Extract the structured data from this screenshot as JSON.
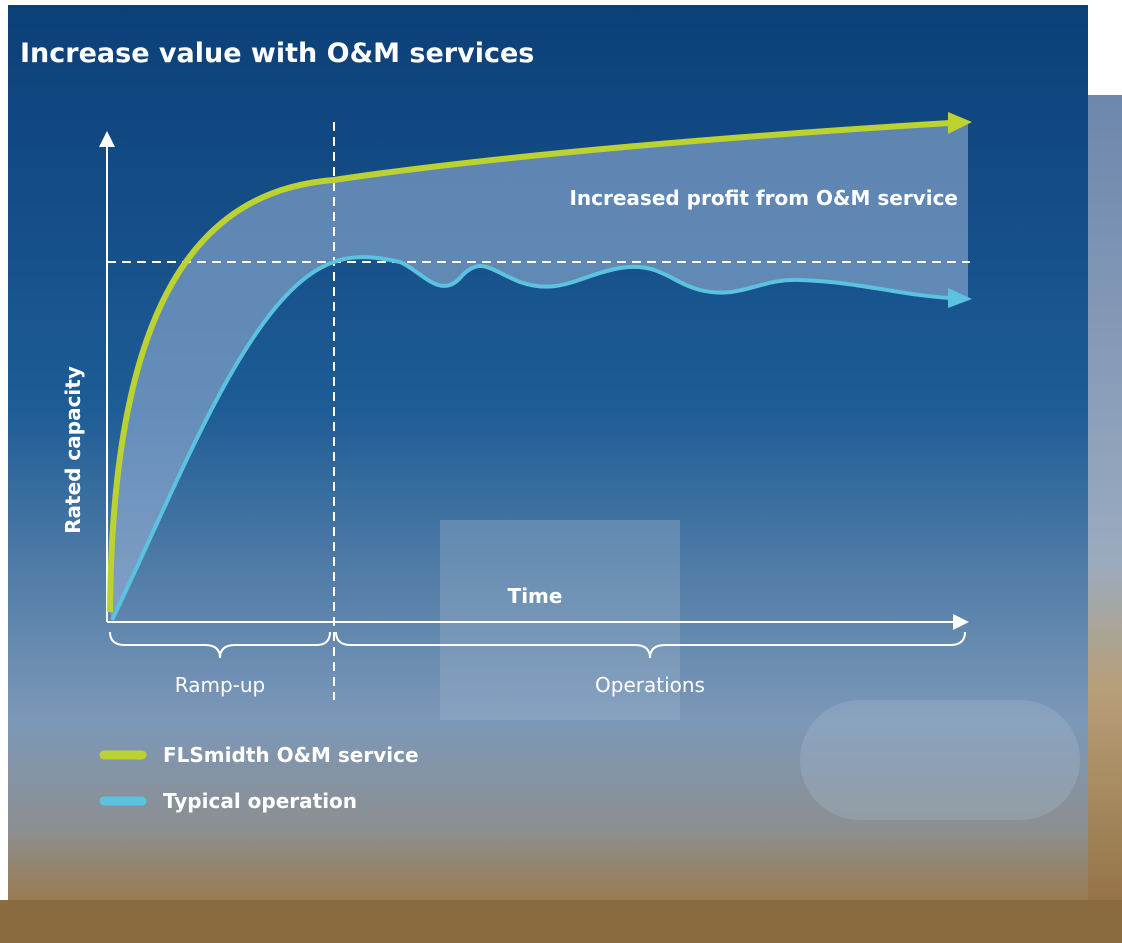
{
  "title": "Increase value with O&M services",
  "annotation": "Increased profit from O&M service",
  "y_axis_label": "Rated capacity",
  "x_axis_label": "Time",
  "phases": [
    "Ramp-up",
    "Operations"
  ],
  "legend": [
    {
      "label": "FLSmidth O&M service",
      "color": "#bcd231"
    },
    {
      "label": "Typical operation",
      "color": "#5bc2e0"
    }
  ]
}
